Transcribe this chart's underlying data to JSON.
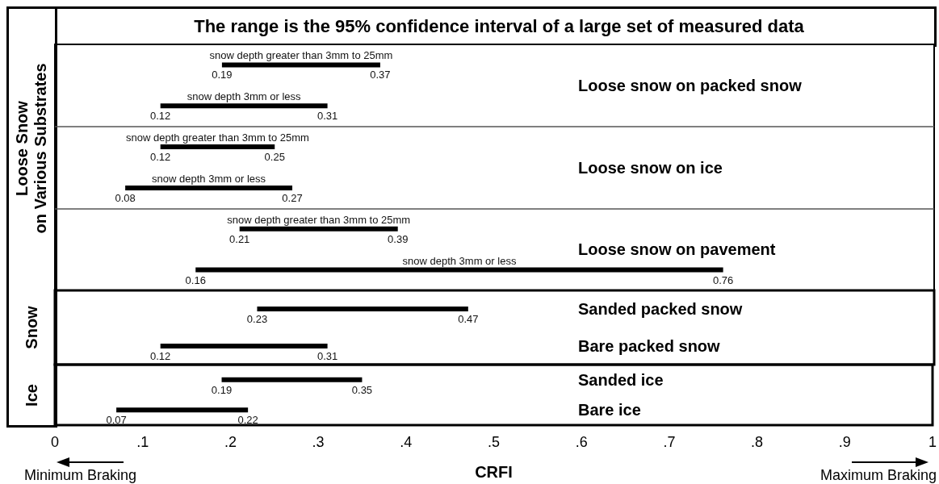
{
  "chart_data": [
    {
      "type": "bar",
      "orientation": "horizontal",
      "title": "The range is the 95% confidence interval of a large set of measured data",
      "ylabel": "Loose Snow\non Various Substrates",
      "color": "#000000",
      "categories": [
        "snow depth greater than 3mm to 25mm",
        "snow depth 3mm or less",
        "snow depth greater than 3mm to 25mm",
        "snow depth 3mm or less",
        "snow depth greater than 3mm to 25mm",
        "snow depth 3mm or less"
      ],
      "base": [
        0.19,
        0.12,
        0.12,
        0.08,
        0.21,
        0.16
      ],
      "values": [
        0.18,
        0.19,
        0.13,
        0.19,
        0.18,
        0.6
      ],
      "xlim": [
        0,
        1
      ],
      "tick_labels": false,
      "annotations": [
        "Loose snow on packed snow",
        "Loose snow on ice",
        "Loose snow on pavement",
        "0.19",
        "0.37",
        "0.12",
        "0.31",
        "0.12",
        "0.25",
        "0.08",
        "0.27",
        "0.21",
        "0.39",
        "0.16",
        "0.76"
      ]
    },
    {
      "type": "bar",
      "orientation": "horizontal",
      "ylabel": "Snow",
      "color": "#000000",
      "categories": [
        "Sanded packed snow",
        "Bare packed snow"
      ],
      "base": [
        0.23,
        0.12
      ],
      "values": [
        0.24,
        0.19
      ],
      "xlim": [
        0,
        1
      ],
      "tick_labels": false,
      "annotations": [
        {
          "text": "0.23",
          "x": 0.23,
          "y": "Sanded packed snow"
        },
        {
          "text": "0.47",
          "x": 0.47,
          "y": "Sanded packed snow"
        },
        {
          "text": "0.12",
          "x": 0.12,
          "y": "Bare packed snow"
        },
        {
          "text": "0.31",
          "x": 0.31,
          "y": "Bare packed snow"
        }
      ]
    },
    {
      "type": "bar",
      "orientation": "horizontal",
      "ylabel": "Ice",
      "xlabel": "CRFI",
      "color": "#000000",
      "categories": [
        "Sanded ice",
        "Bare ice"
      ],
      "base": [
        0.19,
        0.07
      ],
      "values": [
        0.16,
        0.15
      ],
      "xlim": [
        0,
        1
      ],
      "tick_labels": "x",
      "xticks": [
        0,
        {
          "value": 0.1,
          "label": ".1"
        },
        {
          "value": 0.2,
          "label": ".2"
        },
        {
          "value": 0.3,
          "label": ".3"
        },
        {
          "value": 0.4,
          "label": ".4"
        },
        {
          "value": 0.5,
          "label": ".5"
        },
        {
          "value": 0.6,
          "label": ".6"
        },
        {
          "value": 0.7,
          "label": ".7"
        },
        {
          "value": 0.8,
          "label": ".8"
        },
        {
          "value": 0.9,
          "label": ".9"
        },
        1
      ],
      "annotations": [
        "Minimum Braking",
        "Maximum Braking",
        {
          "text": "0.19",
          "x": 0.19,
          "y": "Sanded ice"
        },
        {
          "text": "0.35",
          "x": 0.35,
          "y": "Sanded ice"
        },
        {
          "text": "0.07",
          "x": 0.07,
          "y": "Bare ice"
        },
        {
          "text": "0.22",
          "x": 0.22,
          "y": "Bare ice"
        }
      ]
    }
  ]
}
